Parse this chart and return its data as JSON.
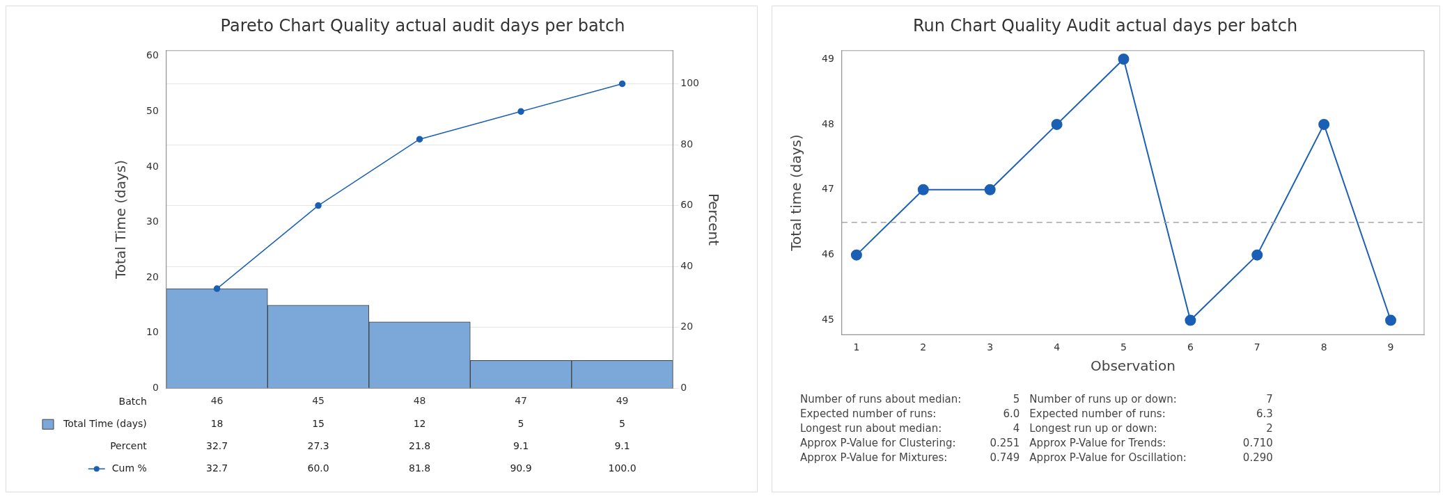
{
  "chart_data": [
    {
      "type": "bar",
      "title": "Pareto Chart Quality actual audit days per batch",
      "xlabel": "Batch",
      "ylabel": "Total Time (days)",
      "y2label": "Percent",
      "categories": [
        "46",
        "45",
        "48",
        "47",
        "49"
      ],
      "series": [
        {
          "name": "Total Time (days)",
          "type": "bar",
          "color": "#7ba7d9",
          "values": [
            18,
            15,
            12,
            5,
            5
          ]
        },
        {
          "name": "Cum %",
          "type": "line",
          "axis": "y2",
          "color": "#1a5fb4",
          "values": [
            32.7,
            60.0,
            81.8,
            90.9,
            100.0
          ],
          "value_labels": [
            "32.7",
            "60.0",
            "81.8",
            "90.9",
            "100.0"
          ]
        }
      ],
      "ylim": [
        0,
        61
      ],
      "yticks": [
        0,
        10,
        20,
        30,
        40,
        50,
        60
      ],
      "y2lim": [
        0,
        110.9
      ],
      "y2ticks": [
        0,
        20,
        40,
        60,
        80,
        100
      ],
      "grid": "y2",
      "marker": "circle",
      "data_labels": true,
      "legend": "bottom left",
      "annotations": [
        "Percent",
        "32.7",
        "27.3",
        "21.8",
        "9.1",
        "9.1"
      ]
    },
    {
      "type": "line",
      "title": "Run Chart Quality Audit actual days per batch",
      "xlabel": "Observation",
      "ylabel": "Total time (days)",
      "x": [
        1,
        2,
        3,
        4,
        5,
        6,
        7,
        8,
        9
      ],
      "series": [
        {
          "color": "#1a5fb4",
          "values": [
            46,
            47,
            47,
            48,
            49,
            45,
            46,
            48,
            45
          ]
        }
      ],
      "xlim": [
        0.78,
        9.5
      ],
      "xticks": [
        1,
        2,
        3,
        4,
        5,
        6,
        7,
        8,
        9
      ],
      "ylim": [
        44.78,
        49.13
      ],
      "yticks": [
        45,
        46,
        47,
        48,
        49
      ],
      "grid": false,
      "marker": "circle",
      "ref_lines": [
        {
          "axis": "y",
          "value": 46.5,
          "color": "#a6a6a6",
          "line_style": "dashed"
        }
      ],
      "annotations": [
        "Number of runs about median:",
        "5",
        "Number of runs up or down:",
        "7",
        "Expected number of runs:",
        "6.0",
        "Expected number of runs:",
        "6.3",
        "Longest run about median:",
        "4",
        "Longest run up or down:",
        "2",
        "Approx P-Value for Clustering:",
        "0.251",
        "Approx P-Value for Trends:",
        "0.710",
        "Approx P-Value for Mixtures:",
        "0.749",
        "Approx P-Value for Oscillation:",
        "0.290"
      ]
    }
  ]
}
